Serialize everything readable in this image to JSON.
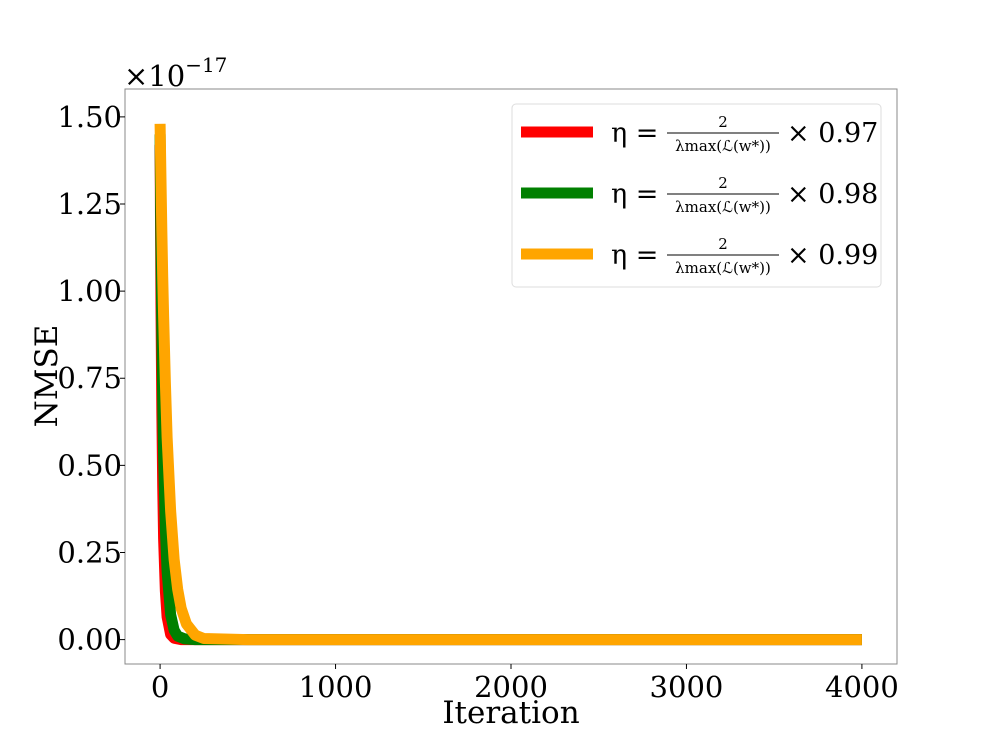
{
  "chart_data": {
    "type": "line",
    "title": "",
    "xlabel": "Iteration",
    "ylabel": "NMSE",
    "y_scale_label": "×10",
    "y_scale_exponent": "−17",
    "xlim": [
      -200,
      4200
    ],
    "ylim": [
      -0.07,
      1.58
    ],
    "x_ticks": [
      0,
      1000,
      2000,
      3000,
      4000
    ],
    "x_tick_labels": [
      "0",
      "1000",
      "2000",
      "3000",
      "4000"
    ],
    "y_ticks": [
      0.0,
      0.25,
      0.5,
      0.75,
      1.0,
      1.25,
      1.5
    ],
    "y_tick_labels": [
      "0.00",
      "0.25",
      "0.50",
      "0.75",
      "1.00",
      "1.25",
      "1.50"
    ],
    "grid": false,
    "legend_position": "top-right",
    "series": [
      {
        "name": "η = 2/λmax(ℒ(w*)) × 0.97",
        "legend_lhs": "η =",
        "legend_num": "2",
        "legend_den": "λmax(ℒ(w*))",
        "legend_factor": "× 0.97",
        "color": "#ff0000",
        "x": [
          0,
          5,
          10,
          15,
          20,
          30,
          40,
          60,
          80,
          120,
          200,
          500,
          1000,
          2000,
          3000,
          4000
        ],
        "y": [
          1.42,
          0.96,
          0.65,
          0.44,
          0.29,
          0.14,
          0.065,
          0.015,
          0.004,
          0.0,
          0.0,
          0.0,
          0.0,
          0.0,
          0.0,
          0.0
        ]
      },
      {
        "name": "η = 2/λmax(ℒ(w*)) × 0.98",
        "legend_lhs": "η =",
        "legend_num": "2",
        "legend_den": "λmax(ℒ(w*))",
        "legend_factor": "× 0.98",
        "color": "#008000",
        "x": [
          0,
          5,
          10,
          15,
          20,
          30,
          40,
          60,
          80,
          100,
          140,
          200,
          500,
          1000,
          2000,
          3000,
          4000
        ],
        "y": [
          1.45,
          1.13,
          0.88,
          0.68,
          0.53,
          0.32,
          0.195,
          0.072,
          0.027,
          0.01,
          0.002,
          0.0,
          0.0,
          0.0,
          0.0,
          0.0,
          0.0
        ]
      },
      {
        "name": "η = 2/λmax(ℒ(w*)) × 0.99",
        "legend_lhs": "η =",
        "legend_num": "2",
        "legend_den": "λmax(ℒ(w*))",
        "legend_factor": "× 0.99",
        "color": "#ffa500",
        "x": [
          0,
          5,
          10,
          15,
          20,
          30,
          40,
          60,
          80,
          100,
          120,
          150,
          200,
          250,
          500,
          1000,
          2000,
          3000,
          4000
        ],
        "y": [
          1.48,
          1.32,
          1.17,
          1.04,
          0.93,
          0.74,
          0.58,
          0.37,
          0.23,
          0.145,
          0.09,
          0.045,
          0.013,
          0.003,
          0.0,
          0.0,
          0.0,
          0.0,
          0.0
        ]
      }
    ]
  }
}
